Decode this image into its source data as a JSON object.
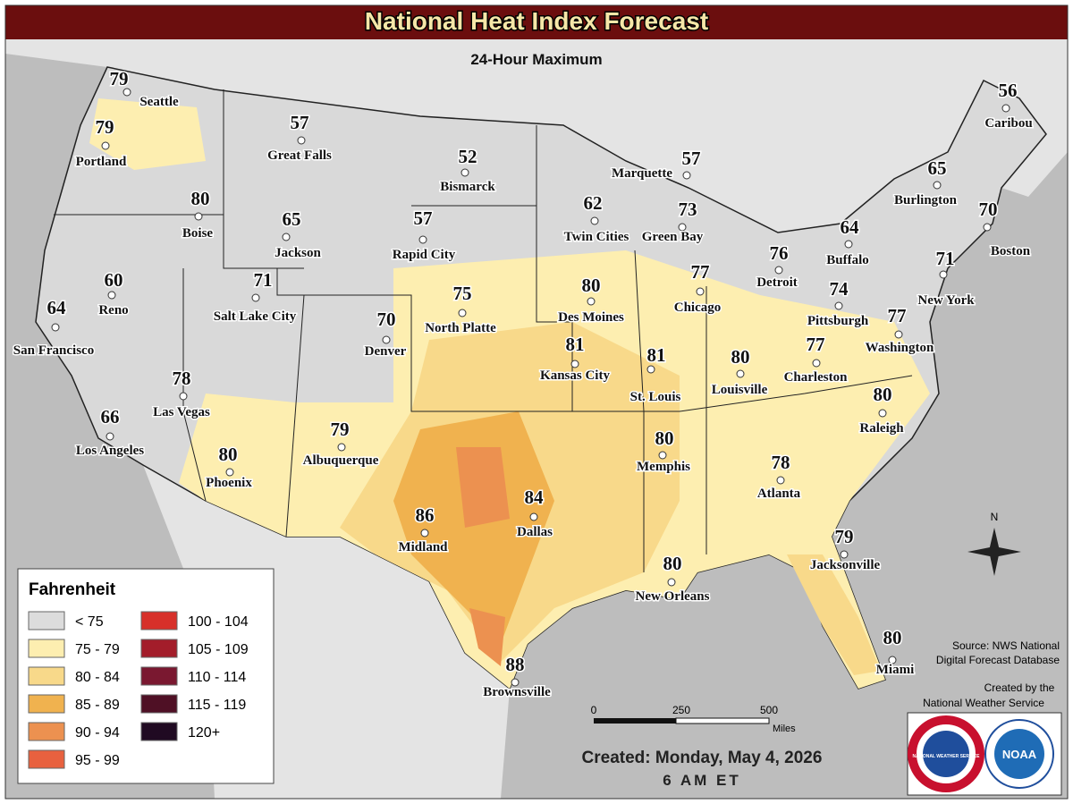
{
  "header": {
    "title": "National Heat Index Forecast",
    "subtitle": "24-Hour Maximum"
  },
  "cities": [
    {
      "name": "Seattle",
      "value": 79
    },
    {
      "name": "Portland",
      "value": 79
    },
    {
      "name": "Boise",
      "value": 80
    },
    {
      "name": "Great Falls",
      "value": 57
    },
    {
      "name": "Jackson",
      "value": 65
    },
    {
      "name": "Bismarck",
      "value": 52
    },
    {
      "name": "Rapid City",
      "value": 57
    },
    {
      "name": "Reno",
      "value": 60
    },
    {
      "name": "San Francisco",
      "value": 64
    },
    {
      "name": "Salt Lake City",
      "value": 71
    },
    {
      "name": "Denver",
      "value": 70
    },
    {
      "name": "North Platte",
      "value": 75
    },
    {
      "name": "Las Vegas",
      "value": 78
    },
    {
      "name": "Los Angeles",
      "value": 66
    },
    {
      "name": "Phoenix",
      "value": 80
    },
    {
      "name": "Albuquerque",
      "value": 79
    },
    {
      "name": "Midland",
      "value": 86
    },
    {
      "name": "Dallas",
      "value": 84
    },
    {
      "name": "Brownsville",
      "value": 88
    },
    {
      "name": "Twin Cities",
      "value": 62
    },
    {
      "name": "Des Moines",
      "value": 80
    },
    {
      "name": "Kansas City",
      "value": 81
    },
    {
      "name": "St. Louis",
      "value": 81
    },
    {
      "name": "Memphis",
      "value": 80
    },
    {
      "name": "New Orleans",
      "value": 80
    },
    {
      "name": "Marquette",
      "value": 57
    },
    {
      "name": "Green Bay",
      "value": 73
    },
    {
      "name": "Chicago",
      "value": 77
    },
    {
      "name": "Detroit",
      "value": 76
    },
    {
      "name": "Louisville",
      "value": 80
    },
    {
      "name": "Atlanta",
      "value": 78
    },
    {
      "name": "Jacksonville",
      "value": 79
    },
    {
      "name": "Miami",
      "value": 80
    },
    {
      "name": "Caribou",
      "value": 56
    },
    {
      "name": "Burlington",
      "value": 65
    },
    {
      "name": "Boston",
      "value": 70
    },
    {
      "name": "Buffalo",
      "value": 64
    },
    {
      "name": "New York",
      "value": 71
    },
    {
      "name": "Pittsburgh",
      "value": 74
    },
    {
      "name": "Washington",
      "value": 77
    },
    {
      "name": "Charleston",
      "value": 77
    },
    {
      "name": "Raleigh",
      "value": 80
    }
  ],
  "legend": {
    "title": "Fahrenheit",
    "items": [
      {
        "label": "< 75",
        "color": "#dcdcdc"
      },
      {
        "label": "75 - 79",
        "color": "#fdeeb0"
      },
      {
        "label": "80 - 84",
        "color": "#f8d98a"
      },
      {
        "label": "85 - 89",
        "color": "#f0b24f"
      },
      {
        "label": "90 - 94",
        "color": "#ec9150"
      },
      {
        "label": "95 - 99",
        "color": "#e8613f"
      },
      {
        "label": "100 - 104",
        "color": "#d7302a"
      },
      {
        "label": "105 - 109",
        "color": "#a31d2a"
      },
      {
        "label": "110 - 114",
        "color": "#7a1830"
      },
      {
        "label": "115 - 119",
        "color": "#4f1025"
      },
      {
        "label": "120+",
        "color": "#200a22"
      }
    ]
  },
  "scale": {
    "labels": [
      "0",
      "250",
      "500"
    ],
    "unit": "Miles"
  },
  "compass": "N",
  "source": [
    "Source: NWS National",
    "Digital Forecast Database"
  ],
  "credit": [
    "Created by the",
    "National Weather Service"
  ],
  "created": [
    "Created: Monday, May 4, 2026",
    "6 AM ET"
  ],
  "logos": {
    "nws": "NATIONAL WEATHER SERVICE",
    "noaa": "NOAA"
  }
}
